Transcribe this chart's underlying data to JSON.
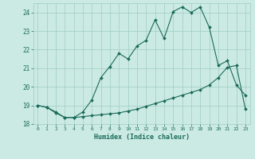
{
  "xlabel": "Humidex (Indice chaleur)",
  "bg_color": "#cceae4",
  "grid_color": "#9eccc4",
  "line_color": "#1a6b5a",
  "x_values": [
    0,
    1,
    2,
    3,
    4,
    5,
    6,
    7,
    8,
    9,
    10,
    11,
    12,
    13,
    14,
    15,
    16,
    17,
    18,
    19,
    20,
    21,
    22,
    23
  ],
  "line1_y": [
    19.0,
    18.9,
    18.6,
    18.35,
    18.35,
    18.65,
    19.3,
    20.5,
    21.1,
    21.8,
    21.5,
    22.2,
    22.5,
    23.6,
    22.6,
    24.05,
    24.3,
    24.0,
    24.3,
    23.2,
    21.15,
    21.4,
    20.1,
    19.55
  ],
  "line2_y": [
    19.0,
    18.9,
    18.65,
    18.35,
    18.35,
    18.4,
    18.45,
    18.5,
    18.55,
    18.6,
    18.7,
    18.8,
    18.95,
    19.1,
    19.25,
    19.4,
    19.55,
    19.7,
    19.85,
    20.1,
    20.5,
    21.05,
    21.15,
    18.8
  ],
  "xlim": [
    0,
    23
  ],
  "ylim": [
    18.0,
    24.5
  ],
  "yticks": [
    18,
    19,
    20,
    21,
    22,
    23,
    24
  ],
  "xticks": [
    0,
    1,
    2,
    3,
    4,
    5,
    6,
    7,
    8,
    9,
    10,
    11,
    12,
    13,
    14,
    15,
    16,
    17,
    18,
    19,
    20,
    21,
    22,
    23
  ]
}
